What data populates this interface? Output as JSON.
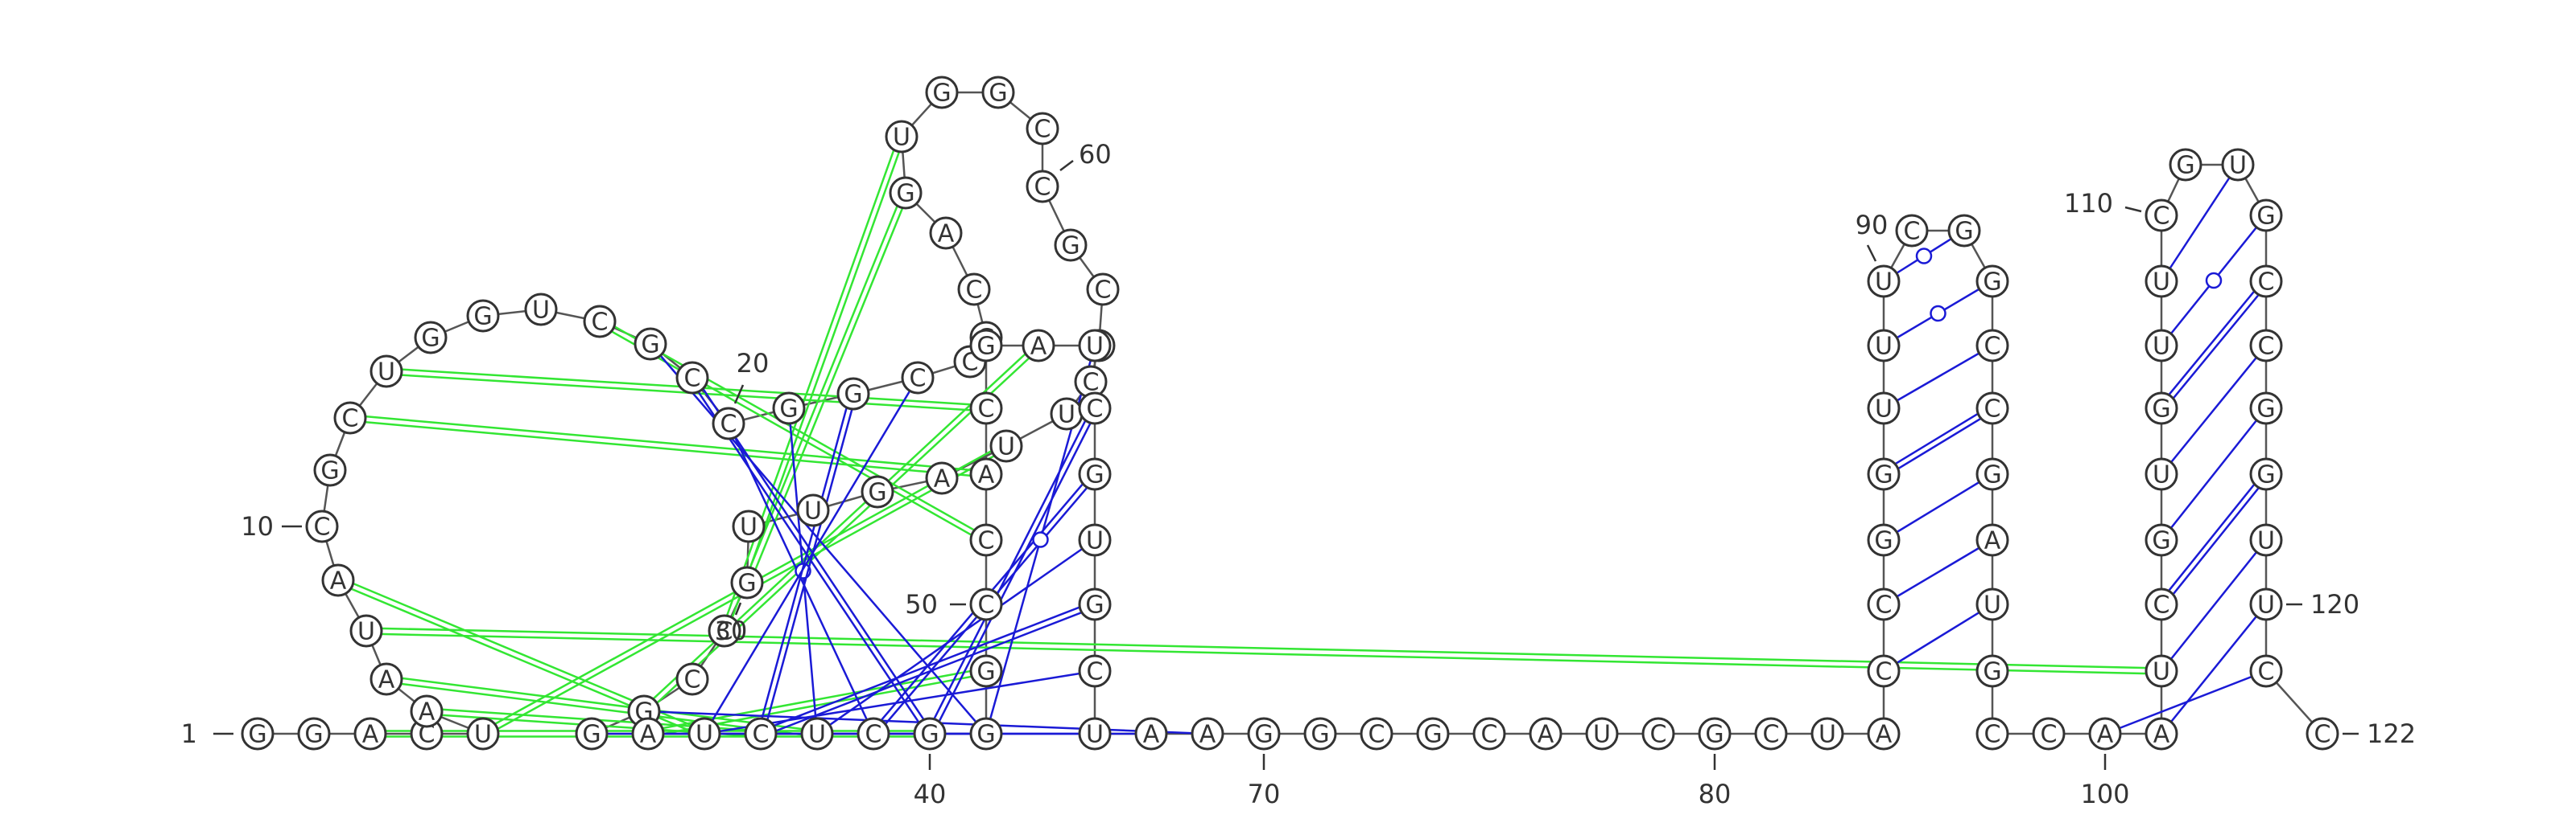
{
  "sequence": [
    "G",
    "G",
    "A",
    "C",
    "U",
    "A",
    "A",
    "U",
    "A",
    "C",
    "G",
    "C",
    "U",
    "G",
    "G",
    "U",
    "C",
    "G",
    "C",
    "C",
    "G",
    "G",
    "C",
    "C",
    "G",
    "C",
    "A",
    "G",
    "U",
    "G",
    "G",
    "C",
    "C",
    "G",
    "C",
    "U",
    "C",
    "U",
    "U",
    "A",
    "G",
    "U",
    "U",
    "G",
    "C",
    "C",
    "G",
    "G",
    "A",
    "U",
    "C",
    "U",
    "C",
    "G",
    "G",
    "G",
    "C",
    "C",
    "A",
    "C",
    "G",
    "A",
    "U",
    "C",
    "G",
    "U",
    "G",
    "C",
    "U",
    "A",
    "A",
    "G",
    "G",
    "C",
    "G",
    "C",
    "A",
    "U",
    "C",
    "G",
    "C",
    "U",
    "A",
    "C",
    "C",
    "G",
    "G",
    "U",
    "U",
    "U",
    "C",
    "G",
    "G",
    "C",
    "C",
    "G",
    "A",
    "U",
    "G",
    "C",
    "C",
    "A",
    "A",
    "U",
    "C",
    "G",
    "U",
    "G",
    "U",
    "U",
    "C",
    "G",
    "U",
    "G",
    "C",
    "C",
    "G",
    "G",
    "U",
    "U",
    "C",
    "C"
  ],
  "position_labels": [
    {
      "text": "1",
      "nt": 1
    },
    {
      "text": "10",
      "nt": 10
    },
    {
      "text": "20",
      "nt": 20
    },
    {
      "text": "30",
      "nt": 30
    },
    {
      "text": "40",
      "nt": 40
    },
    {
      "text": "50",
      "nt": 50
    },
    {
      "text": "60",
      "nt": 60
    },
    {
      "text": "70",
      "nt": 70
    },
    {
      "text": "80",
      "nt": 80
    },
    {
      "text": "90",
      "nt": 90
    },
    {
      "text": "100",
      "nt": 100
    },
    {
      "text": "110",
      "nt": 110
    },
    {
      "text": "120",
      "nt": 120
    },
    {
      "text": "122",
      "nt": 122
    }
  ],
  "base_pairs": [
    {
      "i": 18,
      "j": 55,
      "type": "canonical"
    },
    {
      "i": 19,
      "j": 54,
      "type": "canonical"
    },
    {
      "i": 20,
      "j": 53,
      "type": "canonical"
    },
    {
      "i": 21,
      "j": 52,
      "type": "canonical"
    },
    {
      "i": 22,
      "j": 51,
      "type": "canonical"
    },
    {
      "i": 23,
      "j": 50,
      "type": "canonical"
    },
    {
      "i": 47,
      "j": 71,
      "type": "canonical"
    },
    {
      "i": 48,
      "j": 70,
      "type": "canonical"
    },
    {
      "i": 49,
      "j": 69,
      "type": "canonical"
    },
    {
      "i": 50,
      "j": 68,
      "type": "canonical"
    },
    {
      "i": 51,
      "j": 67,
      "type": "canonical"
    },
    {
      "i": 52,
      "j": 66,
      "type": "canonical"
    },
    {
      "i": 53,
      "j": 65,
      "type": "canonical"
    },
    {
      "i": 54,
      "j": 64,
      "type": "canonical"
    },
    {
      "i": 55,
      "j": 63,
      "type": "canonical"
    },
    {
      "i": 84,
      "j": 98,
      "type": "canonical"
    },
    {
      "i": 85,
      "j": 97,
      "type": "canonical"
    },
    {
      "i": 86,
      "j": 96,
      "type": "canonical"
    },
    {
      "i": 87,
      "j": 95,
      "type": "canonical"
    },
    {
      "i": 88,
      "j": 94,
      "type": "canonical"
    },
    {
      "i": 89,
      "j": 93,
      "type": "canonical"
    },
    {
      "i": 90,
      "j": 92,
      "type": "canonical"
    },
    {
      "i": 91,
      "j": 91,
      "type": "canonical"
    },
    {
      "i": 102,
      "j": 121,
      "type": "canonical"
    },
    {
      "i": 103,
      "j": 120,
      "type": "canonical"
    },
    {
      "i": 104,
      "j": 119,
      "type": "canonical"
    },
    {
      "i": 105,
      "j": 118,
      "type": "canonical"
    },
    {
      "i": 106,
      "j": 117,
      "type": "canonical"
    },
    {
      "i": 107,
      "j": 116,
      "type": "canonical"
    },
    {
      "i": 108,
      "j": 115,
      "type": "canonical"
    },
    {
      "i": 109,
      "j": 114,
      "type": "canonical"
    },
    {
      "i": 110,
      "j": 113,
      "type": "canonical"
    }
  ],
  "tertiary_pairs": [
    {
      "i": 3,
      "j": 54
    },
    {
      "i": 5,
      "j": 39
    },
    {
      "i": 6,
      "j": 51
    },
    {
      "i": 7,
      "j": 52
    },
    {
      "i": 8,
      "j": 104
    },
    {
      "i": 9,
      "j": 50
    },
    {
      "i": 12,
      "j": 59
    },
    {
      "i": 13,
      "j": 60
    },
    {
      "i": 17,
      "j": 58
    },
    {
      "i": 28,
      "j": 44
    },
    {
      "i": 29,
      "j": 45
    },
    {
      "i": 56,
      "j": 49
    },
    {
      "i": 62,
      "j": 47
    }
  ],
  "colors": {
    "canonical_pair": "#1a1ad6",
    "tertiary_pair": "#33e633",
    "backbone": "#555555",
    "nucleotide_outline": "#333333"
  }
}
